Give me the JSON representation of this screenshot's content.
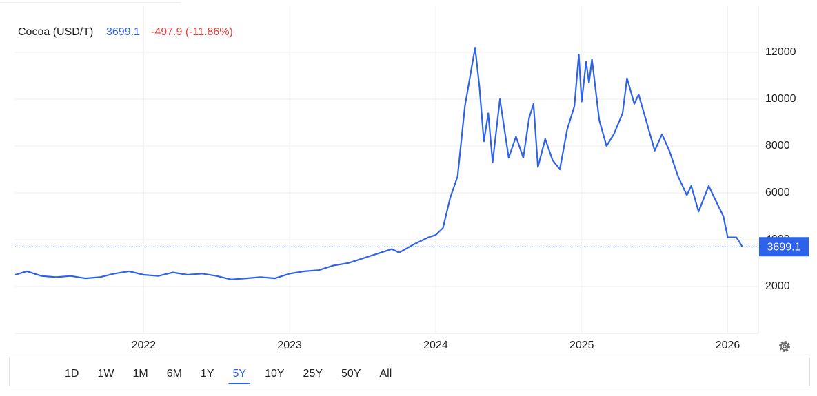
{
  "chart_data": {
    "type": "line",
    "series_name": "Cocoa (USD/T)",
    "change": "-497.9 (-11.86%)",
    "color": "#2f62ea",
    "x": [
      2021.12,
      2021.2,
      2021.3,
      2021.4,
      2021.5,
      2021.6,
      2021.7,
      2021.8,
      2021.9,
      2022.0,
      2022.1,
      2022.2,
      2022.3,
      2022.4,
      2022.5,
      2022.6,
      2022.7,
      2022.8,
      2022.9,
      2023.0,
      2023.1,
      2023.2,
      2023.3,
      2023.4,
      2023.5,
      2023.6,
      2023.7,
      2023.75,
      2023.85,
      2023.95,
      2024.0,
      2024.05,
      2024.1,
      2024.15,
      2024.2,
      2024.27,
      2024.3,
      2024.33,
      2024.36,
      2024.39,
      2024.44,
      2024.5,
      2024.55,
      2024.6,
      2024.64,
      2024.67,
      2024.7,
      2024.75,
      2024.8,
      2024.85,
      2024.9,
      2024.95,
      2024.98,
      2025.0,
      2025.03,
      2025.05,
      2025.07,
      2025.12,
      2025.17,
      2025.22,
      2025.28,
      2025.31,
      2025.36,
      2025.39,
      2025.45,
      2025.5,
      2025.55,
      2025.6,
      2025.66,
      2025.72,
      2025.75,
      2025.8,
      2025.87,
      2025.9,
      2025.97,
      2026.0,
      2026.06,
      2026.1
    ],
    "values": [
      2500,
      2650,
      2450,
      2400,
      2450,
      2350,
      2400,
      2550,
      2650,
      2500,
      2450,
      2600,
      2500,
      2550,
      2450,
      2300,
      2350,
      2400,
      2350,
      2550,
      2650,
      2700,
      2900,
      3000,
      3200,
      3400,
      3600,
      3450,
      3800,
      4100,
      4200,
      4500,
      5800,
      6700,
      9700,
      12200,
      10500,
      8200,
      9400,
      7300,
      10000,
      7500,
      8400,
      7500,
      9200,
      9800,
      7100,
      8300,
      7400,
      7000,
      8700,
      9700,
      11900,
      9900,
      11600,
      10700,
      11700,
      9100,
      8000,
      8500,
      9400,
      10900,
      9800,
      10200,
      8900,
      7800,
      8500,
      7800,
      6700,
      5900,
      6300,
      5200,
      6300,
      5900,
      5000,
      4100,
      4100,
      3699.1
    ],
    "xlim": [
      2021.12,
      2026.21
    ],
    "xticks": [
      2022,
      2023,
      2024,
      2025,
      2026
    ],
    "ylim": [
      0,
      14000
    ],
    "yticks": [
      2000,
      4000,
      6000,
      8000,
      10000,
      12000
    ],
    "grid": true
  },
  "controls": {
    "ranges": [
      "1D",
      "1W",
      "1M",
      "6M",
      "1Y",
      "5Y",
      "10Y",
      "25Y",
      "50Y",
      "All"
    ],
    "selected_range": "5Y"
  }
}
